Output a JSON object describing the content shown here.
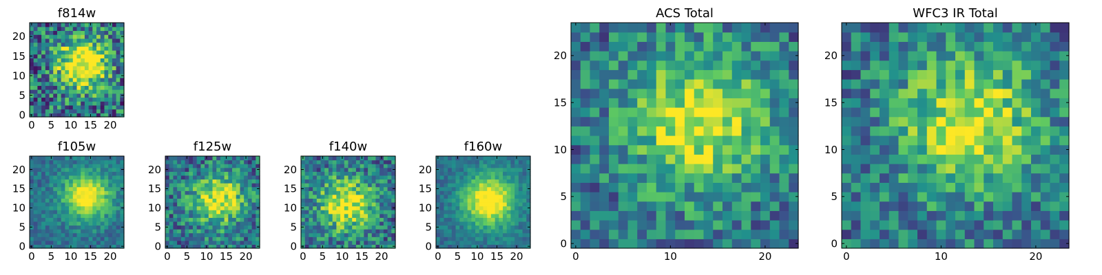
{
  "chart_data": [
    {
      "type": "heatmap",
      "title": "f814w",
      "size": 24,
      "xticks": [
        0,
        5,
        10,
        15,
        20
      ],
      "yticks": [
        0,
        5,
        10,
        15,
        20
      ],
      "blob_center": [
        13,
        13
      ],
      "blob_sigma": 4.5,
      "peak": 0.8,
      "noise": 0.34,
      "colormap": [
        "#440154",
        "#3b528b",
        "#21918c",
        "#5ec962",
        "#fde725"
      ]
    },
    {
      "type": "heatmap",
      "title": "f105w",
      "size": 24,
      "xticks": [
        0,
        5,
        10,
        15,
        20
      ],
      "yticks": [
        0,
        5,
        10,
        15,
        20
      ],
      "blob_center": [
        14,
        13
      ],
      "blob_sigma": 4.2,
      "peak": 0.7,
      "noise": 0.14,
      "colormap": [
        "#440154",
        "#3b528b",
        "#21918c",
        "#5ec962",
        "#fde725"
      ]
    },
    {
      "type": "heatmap",
      "title": "f125w",
      "size": 24,
      "xticks": [
        0,
        5,
        10,
        15,
        20
      ],
      "yticks": [
        0,
        5,
        10,
        15,
        20
      ],
      "blob_center": [
        13,
        12
      ],
      "blob_sigma": 4.6,
      "peak": 0.62,
      "noise": 0.26,
      "colormap": [
        "#440154",
        "#3b528b",
        "#21918c",
        "#5ec962",
        "#fde725"
      ]
    },
    {
      "type": "heatmap",
      "title": "f140w",
      "size": 24,
      "xticks": [
        0,
        5,
        10,
        15,
        20
      ],
      "yticks": [
        0,
        5,
        10,
        15,
        20
      ],
      "blob_center": [
        11,
        11
      ],
      "blob_sigma": 5.0,
      "peak": 0.62,
      "noise": 0.26,
      "colormap": [
        "#440154",
        "#3b528b",
        "#21918c",
        "#5ec962",
        "#fde725"
      ]
    },
    {
      "type": "heatmap",
      "title": "f160w",
      "size": 24,
      "xticks": [
        0,
        5,
        10,
        15,
        20
      ],
      "yticks": [
        0,
        5,
        10,
        15,
        20
      ],
      "blob_center": [
        13,
        12
      ],
      "blob_sigma": 4.6,
      "peak": 0.75,
      "noise": 0.12,
      "colormap": [
        "#440154",
        "#3b528b",
        "#21918c",
        "#5ec962",
        "#fde725"
      ]
    },
    {
      "type": "heatmap",
      "title": "ACS Total",
      "size": 24,
      "xticks": [
        0,
        10,
        20
      ],
      "yticks": [
        0,
        5,
        10,
        15,
        20
      ],
      "blob_center": [
        13,
        13
      ],
      "blob_sigma": 5.5,
      "peak": 0.55,
      "noise": 0.24,
      "colormap": [
        "#440154",
        "#3b528b",
        "#21918c",
        "#5ec962",
        "#fde725"
      ]
    },
    {
      "type": "heatmap",
      "title": "WFC3 IR Total",
      "size": 24,
      "xticks": [
        0,
        10,
        20
      ],
      "yticks": [
        0,
        5,
        10,
        15,
        20
      ],
      "blob_center": [
        13,
        13
      ],
      "blob_sigma": 5.5,
      "peak": 0.55,
      "noise": 0.24,
      "colormap": [
        "#440154",
        "#3b528b",
        "#21918c",
        "#5ec962",
        "#fde725"
      ]
    }
  ]
}
